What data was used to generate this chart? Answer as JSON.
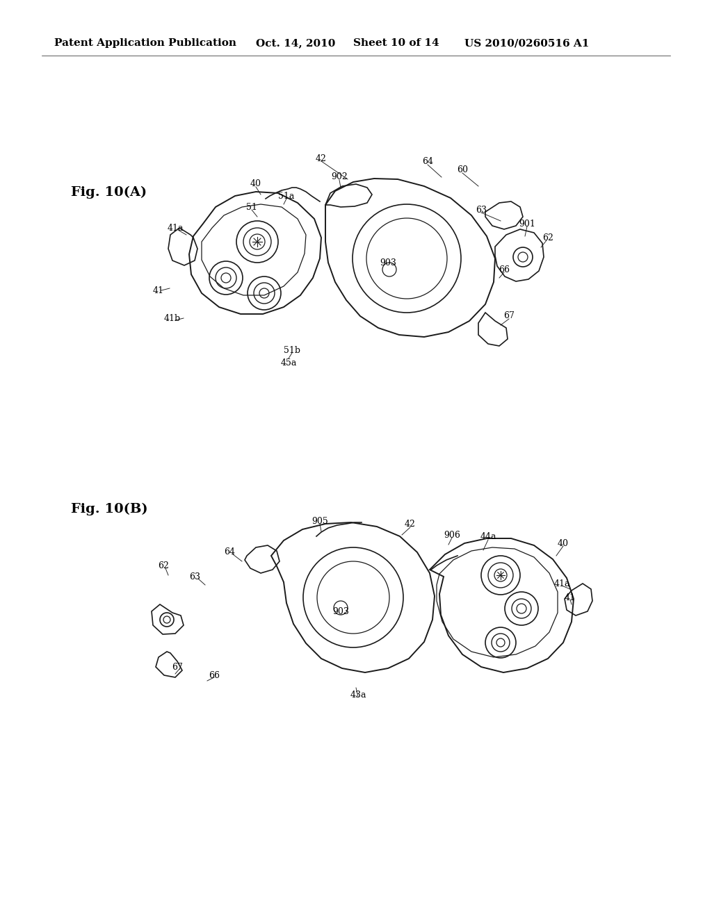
{
  "background_color": "#ffffff",
  "header_text": "Patent Application Publication",
  "header_date": "Oct. 14, 2010",
  "header_sheet": "Sheet 10 of 14",
  "header_patent": "US 2010/0260516 A1",
  "fig_a_label": "Fig. 10(A)",
  "fig_b_label": "Fig. 10(B)",
  "header_fontsize": 11,
  "fig_label_fontsize": 14,
  "ref_fontsize": 9,
  "line_color": "#1a1a1a",
  "text_color": "#000000"
}
